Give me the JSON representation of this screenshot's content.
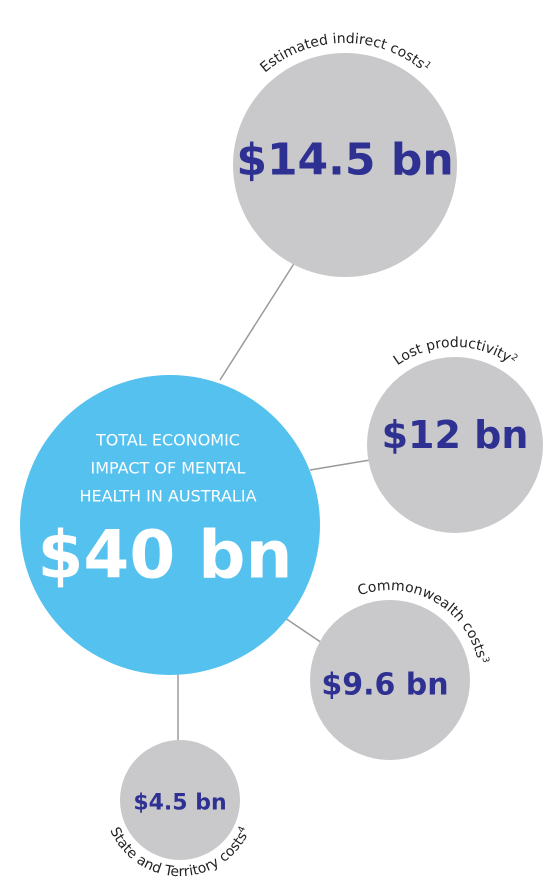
{
  "center": {
    "lines": [
      "TOTAL ECONOMIC",
      "IMPACT OF MENTAL",
      "HEALTH IN AUSTRALIA"
    ],
    "value": "$40 bn"
  },
  "nodes": [
    {
      "label": "Estimated indirect costs",
      "note": "1",
      "value": "$14.5 bn"
    },
    {
      "label": "Lost productivity",
      "note": "2",
      "value": "$12 bn"
    },
    {
      "label": "Commonwealth costs",
      "note": "3",
      "value": "$9.6 bn"
    },
    {
      "label": "State and Territory costs",
      "note": "4",
      "value": "$4.5 bn"
    }
  ]
}
